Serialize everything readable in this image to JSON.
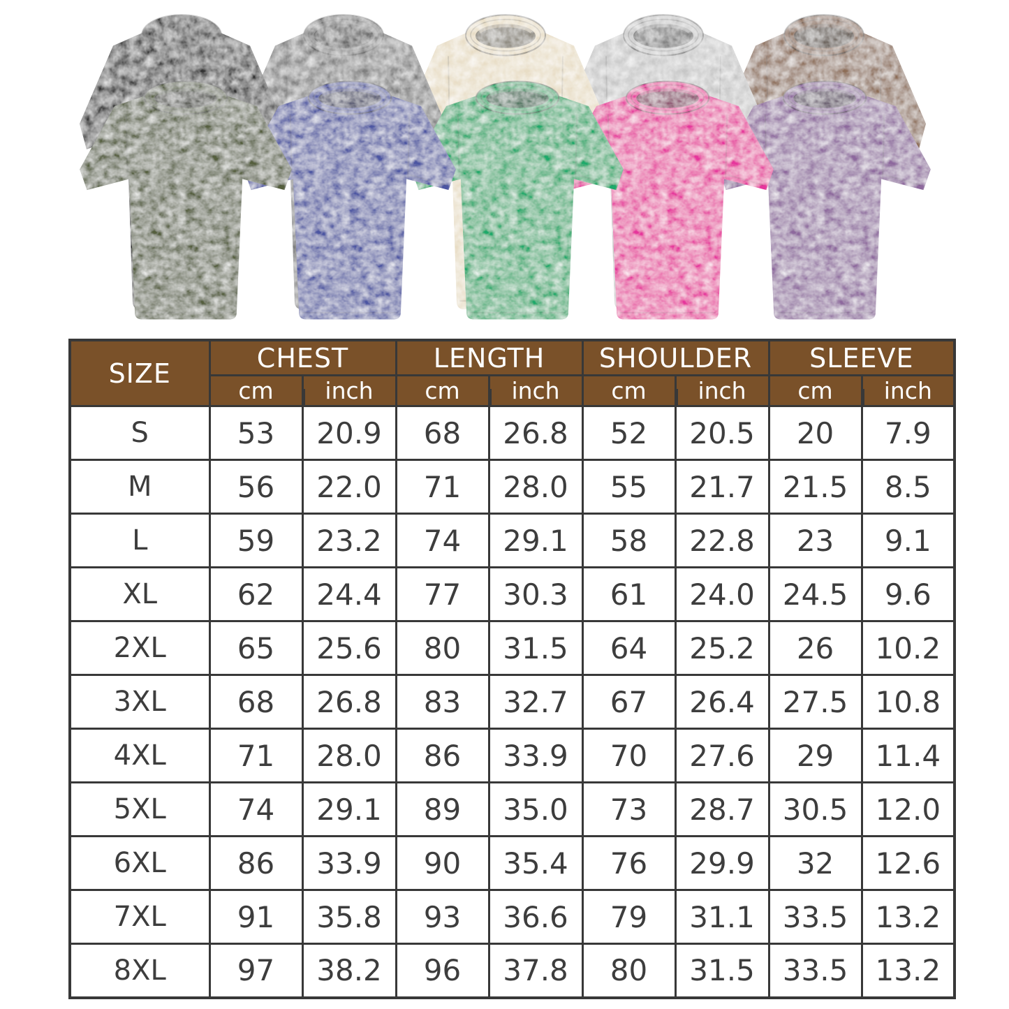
{
  "page": {
    "background": "#ffffff"
  },
  "gallery": {
    "description": "ten washed oversized t-shirts in two overlapping rows",
    "shirts": [
      {
        "name": "washed-black",
        "color": "#333333",
        "row": "back"
      },
      {
        "name": "washed-gray",
        "color": "#7e7e7e",
        "row": "back"
      },
      {
        "name": "cream",
        "color": "#e8ddc5",
        "row": "back"
      },
      {
        "name": "light-gray",
        "color": "#c6c6c6",
        "row": "back"
      },
      {
        "name": "brown",
        "color": "#8d6d57",
        "row": "back"
      },
      {
        "name": "olive-green",
        "color": "#545e3e",
        "row": "front"
      },
      {
        "name": "blue",
        "color": "#4c55a2",
        "row": "front"
      },
      {
        "name": "green",
        "color": "#1ca96a",
        "row": "front"
      },
      {
        "name": "hot-pink",
        "color": "#e6359c",
        "row": "front"
      },
      {
        "name": "purple",
        "color": "#8d689d",
        "row": "front"
      }
    ]
  },
  "size_chart": {
    "header_bg": "#7a5129",
    "header_text_color": "#ffffff",
    "border_color": "#383838",
    "text_color": "#3d3d3d",
    "columns": [
      "SIZE",
      "CHEST",
      "LENGTH",
      "SHOULDER",
      "SLEEVE"
    ],
    "units": [
      "cm",
      "inch"
    ],
    "rows": [
      {
        "size": "S",
        "values": [
          "53",
          "20.9",
          "68",
          "26.8",
          "52",
          "20.5",
          "20",
          "7.9"
        ]
      },
      {
        "size": "M",
        "values": [
          "56",
          "22.0",
          "71",
          "28.0",
          "55",
          "21.7",
          "21.5",
          "8.5"
        ]
      },
      {
        "size": "L",
        "values": [
          "59",
          "23.2",
          "74",
          "29.1",
          "58",
          "22.8",
          "23",
          "9.1"
        ]
      },
      {
        "size": "XL",
        "values": [
          "62",
          "24.4",
          "77",
          "30.3",
          "61",
          "24.0",
          "24.5",
          "9.6"
        ]
      },
      {
        "size": "2XL",
        "values": [
          "65",
          "25.6",
          "80",
          "31.5",
          "64",
          "25.2",
          "26",
          "10.2"
        ]
      },
      {
        "size": "3XL",
        "values": [
          "68",
          "26.8",
          "83",
          "32.7",
          "67",
          "26.4",
          "27.5",
          "10.8"
        ]
      },
      {
        "size": "4XL",
        "values": [
          "71",
          "28.0",
          "86",
          "33.9",
          "70",
          "27.6",
          "29",
          "11.4"
        ]
      },
      {
        "size": "5XL",
        "values": [
          "74",
          "29.1",
          "89",
          "35.0",
          "73",
          "28.7",
          "30.5",
          "12.0"
        ]
      },
      {
        "size": "6XL",
        "values": [
          "86",
          "33.9",
          "90",
          "35.4",
          "76",
          "29.9",
          "32",
          "12.6"
        ]
      },
      {
        "size": "7XL",
        "values": [
          "91",
          "35.8",
          "93",
          "36.6",
          "79",
          "31.1",
          "33.5",
          "13.2"
        ]
      },
      {
        "size": "8XL",
        "values": [
          "97",
          "38.2",
          "96",
          "37.8",
          "80",
          "31.5",
          "33.5",
          "13.2"
        ]
      }
    ]
  }
}
